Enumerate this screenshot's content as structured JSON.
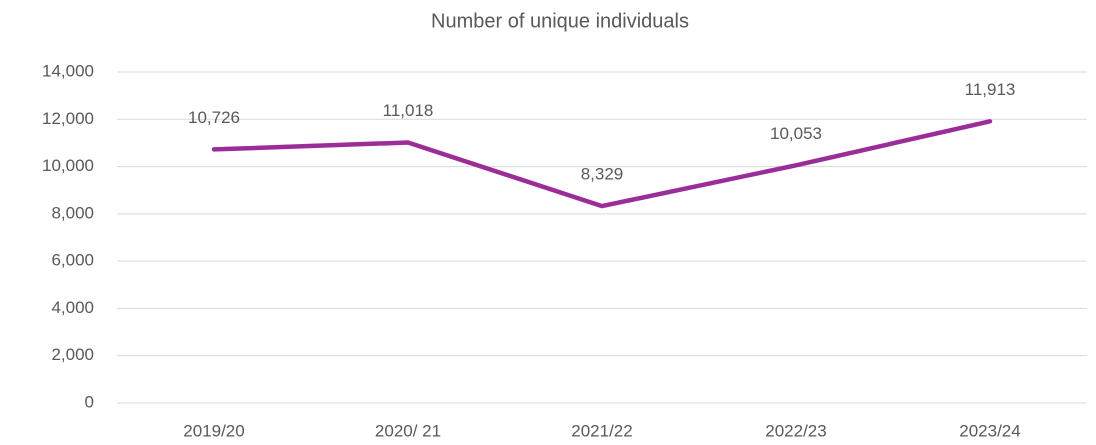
{
  "chart_data": {
    "type": "line",
    "title": "Number of unique individuals",
    "categories": [
      "2019/20",
      "2020/ 21",
      "2021/22",
      "2022/23",
      "2023/24"
    ],
    "series": [
      {
        "color": "#9b2d99",
        "values": [
          10726,
          11018,
          8329,
          10053,
          11913
        ],
        "value_labels": [
          "10,726",
          "11,018",
          "8,329",
          "10,053",
          "11,913"
        ]
      }
    ],
    "ylim": [
      0,
      14000
    ],
    "yticks": [
      0,
      {
        "value": 2000,
        "label": "2,000"
      },
      {
        "value": 4000,
        "label": "4,000"
      },
      {
        "value": 6000,
        "label": "6,000"
      },
      {
        "value": 8000,
        "label": "8,000"
      },
      {
        "value": 10000,
        "label": "10,000"
      },
      {
        "value": 12000,
        "label": "12,000"
      },
      {
        "value": 14000,
        "label": "14,000"
      }
    ],
    "grid": true
  }
}
